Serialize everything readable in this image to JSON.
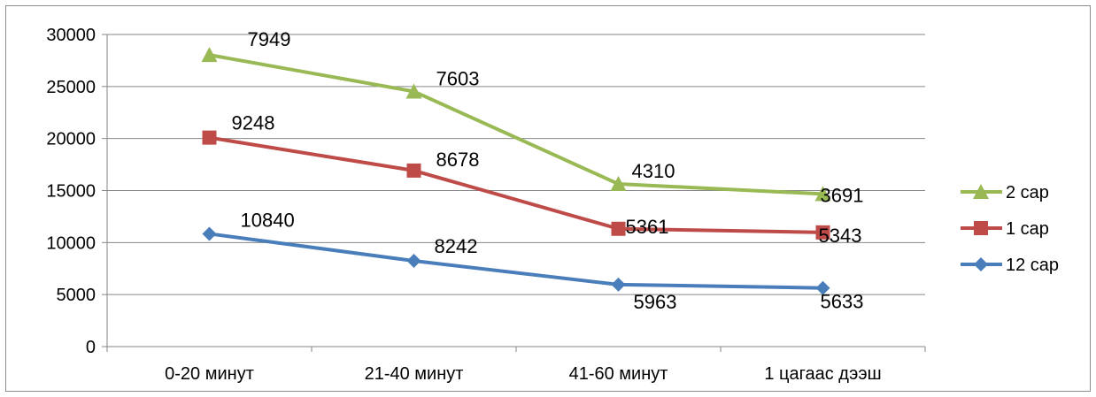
{
  "chart_data": {
    "type": "line",
    "title": "",
    "xlabel": "",
    "ylabel": "",
    "categories": [
      "0-20 минут",
      "21-40 минут",
      "41-60 минут",
      "1 цагаас дээш"
    ],
    "ylim": [
      0,
      30000
    ],
    "yticks": [
      0,
      5000,
      10000,
      15000,
      20000,
      25000,
      30000
    ],
    "grid": true,
    "stacked": true,
    "legend_position": "right",
    "series": [
      {
        "name": "12 сар",
        "values": [
          10840,
          8242,
          5963,
          5633
        ],
        "color": "#4a7ebb",
        "marker": "diamond"
      },
      {
        "name": "1 сар",
        "values": [
          9248,
          8678,
          5361,
          5343
        ],
        "color": "#be4b48",
        "marker": "square"
      },
      {
        "name": "2 сар",
        "values": [
          7949,
          7603,
          4310,
          3691
        ],
        "color": "#98b954",
        "marker": "triangle"
      }
    ]
  }
}
